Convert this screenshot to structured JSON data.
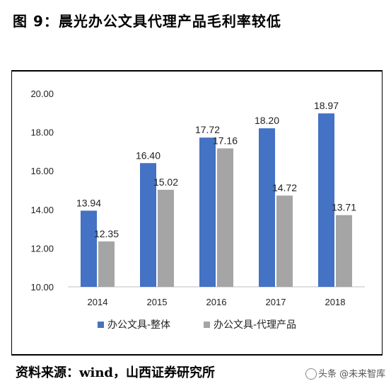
{
  "figure": {
    "title": "图 9：晨光办公文具代理产品毛利率较低",
    "source": "资料来源：wind，山西证券研究所",
    "watermark": "头条 @未来智库"
  },
  "colors": {
    "series1": "#4472C4",
    "series2": "#A5A5A5"
  },
  "chart_data": {
    "type": "bar",
    "categories": [
      "2014",
      "2015",
      "2016",
      "2017",
      "2018"
    ],
    "series": [
      {
        "name": "办公文具-整体",
        "values": [
          13.94,
          16.4,
          17.72,
          18.2,
          18.97
        ]
      },
      {
        "name": "办公文具-代理产品",
        "values": [
          12.35,
          15.02,
          17.16,
          14.72,
          13.71
        ]
      }
    ],
    "y_ticks": [
      "10.00",
      "12.00",
      "14.00",
      "16.00",
      "18.00",
      "20.00"
    ],
    "ylim": [
      10,
      20
    ],
    "grid": false,
    "legend_position": "bottom"
  }
}
